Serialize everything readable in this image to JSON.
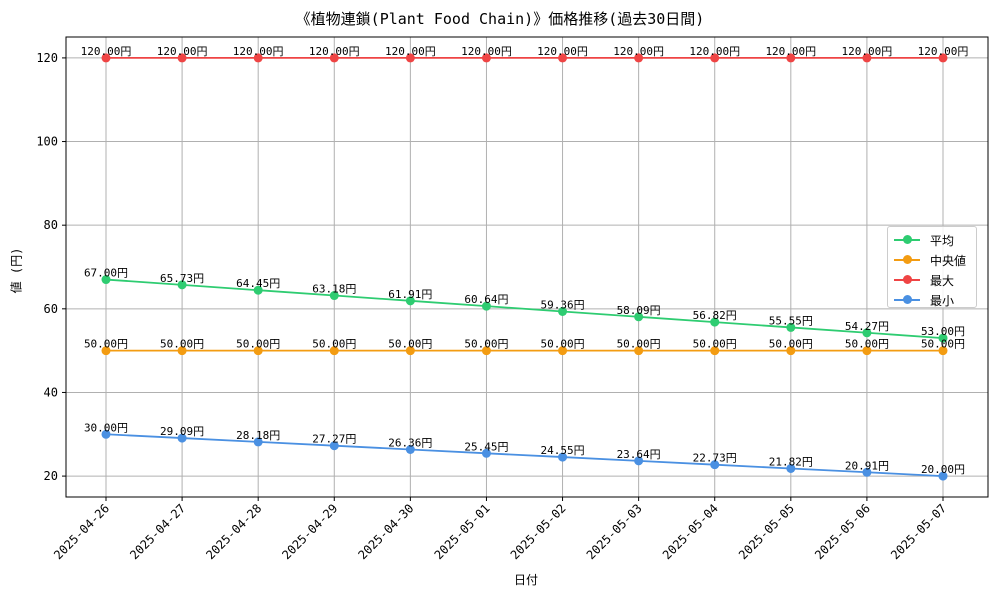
{
  "chart_data": {
    "type": "line",
    "title": "《植物連鎖(Plant Food Chain)》価格推移(過去30日間)",
    "xlabel": "日付",
    "ylabel": "値 (円)",
    "ylim": [
      15,
      125
    ],
    "yticks": [
      20,
      40,
      60,
      80,
      100,
      120
    ],
    "grid": true,
    "legend_position": "center-right",
    "label_suffix": "円",
    "categories": [
      "2025-04-26",
      "2025-04-27",
      "2025-04-28",
      "2025-04-29",
      "2025-04-30",
      "2025-05-01",
      "2025-05-02",
      "2025-05-03",
      "2025-05-04",
      "2025-05-05",
      "2025-05-06",
      "2025-05-07"
    ],
    "series": [
      {
        "name": "平均",
        "color": "#2ecc71",
        "values": [
          67.0,
          65.73,
          64.45,
          63.18,
          61.91,
          60.64,
          59.36,
          58.09,
          56.82,
          55.55,
          54.27,
          53.0
        ]
      },
      {
        "name": "中央値",
        "color": "#f39c12",
        "values": [
          50.0,
          50.0,
          50.0,
          50.0,
          50.0,
          50.0,
          50.0,
          50.0,
          50.0,
          50.0,
          50.0,
          50.0
        ]
      },
      {
        "name": "最大",
        "color": "#ef4444",
        "values": [
          120.0,
          120.0,
          120.0,
          120.0,
          120.0,
          120.0,
          120.0,
          120.0,
          120.0,
          120.0,
          120.0,
          120.0
        ]
      },
      {
        "name": "最小",
        "color": "#4a90e2",
        "values": [
          30.0,
          29.09,
          28.18,
          27.27,
          26.36,
          25.45,
          24.55,
          23.64,
          22.73,
          21.82,
          20.91,
          20.0
        ]
      }
    ]
  }
}
